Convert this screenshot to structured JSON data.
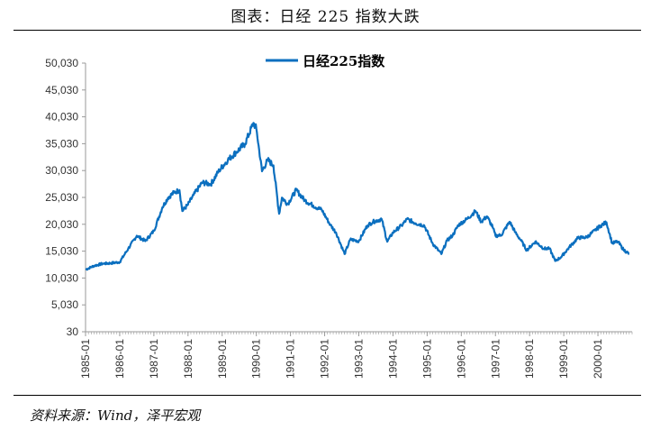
{
  "header": {
    "title": "图表：日经 225 指数大跌"
  },
  "footer": {
    "source": "资料来源：Wind，泽平宏观"
  },
  "colors": {
    "line": "#0b6fbf",
    "axis": "#9a9a9a"
  },
  "chart_data": {
    "type": "line",
    "title": "",
    "xlabel": "",
    "ylabel": "",
    "ylim": [
      30,
      50030
    ],
    "yticks": [
      "50,030",
      "45,030",
      "40,030",
      "35,030",
      "30,030",
      "25,030",
      "20,030",
      "15,030",
      "10,030",
      "5,030",
      "30"
    ],
    "ytick_values": [
      50030,
      45030,
      40030,
      35030,
      30030,
      25030,
      20030,
      15030,
      10030,
      5030,
      30
    ],
    "xticks": [
      "1985-01",
      "1986-01",
      "1987-01",
      "1988-01",
      "1989-01",
      "1990-01",
      "1991-01",
      "1992-01",
      "1993-01",
      "1994-01",
      "1995-01",
      "1996-01",
      "1997-01",
      "1998-01",
      "1999-01",
      "2000-01"
    ],
    "x_range": [
      "1985-01",
      "2000-12"
    ],
    "legend": {
      "position": "top"
    },
    "series": [
      {
        "name": "日经225指数",
        "points": [
          [
            "1985-01",
            11600
          ],
          [
            "1985-04",
            12300
          ],
          [
            "1985-07",
            12700
          ],
          [
            "1985-10",
            12800
          ],
          [
            "1986-01",
            13000
          ],
          [
            "1986-04",
            15500
          ],
          [
            "1986-07",
            17900
          ],
          [
            "1986-10",
            16900
          ],
          [
            "1987-01",
            18800
          ],
          [
            "1987-04",
            23200
          ],
          [
            "1987-06",
            25000
          ],
          [
            "1987-08",
            25900
          ],
          [
            "1987-10",
            26400
          ],
          [
            "1987-11",
            22500
          ],
          [
            "1988-01",
            23700
          ],
          [
            "1988-03",
            25500
          ],
          [
            "1988-06",
            27800
          ],
          [
            "1988-09",
            27500
          ],
          [
            "1988-12",
            30100
          ],
          [
            "1989-03",
            32000
          ],
          [
            "1989-06",
            33500
          ],
          [
            "1989-09",
            35000
          ],
          [
            "1989-12",
            38900
          ],
          [
            "1990-01",
            37800
          ],
          [
            "1990-03",
            29900
          ],
          [
            "1990-05",
            32000
          ],
          [
            "1990-07",
            31000
          ],
          [
            "1990-09",
            22000
          ],
          [
            "1990-10",
            25000
          ],
          [
            "1990-12",
            23800
          ],
          [
            "1991-03",
            26400
          ],
          [
            "1991-06",
            24500
          ],
          [
            "1991-09",
            23500
          ],
          [
            "1991-12",
            22700
          ],
          [
            "1992-03",
            19900
          ],
          [
            "1992-05",
            18500
          ],
          [
            "1992-08",
            14500
          ],
          [
            "1992-10",
            17200
          ],
          [
            "1993-01",
            16900
          ],
          [
            "1993-04",
            19800
          ],
          [
            "1993-06",
            20500
          ],
          [
            "1993-09",
            21000
          ],
          [
            "1993-11",
            16800
          ],
          [
            "1994-01",
            18500
          ],
          [
            "1994-04",
            19800
          ],
          [
            "1994-06",
            21000
          ],
          [
            "1994-09",
            20200
          ],
          [
            "1994-12",
            19800
          ],
          [
            "1995-03",
            16400
          ],
          [
            "1995-06",
            14500
          ],
          [
            "1995-08",
            17000
          ],
          [
            "1995-10",
            18000
          ],
          [
            "1995-12",
            19900
          ],
          [
            "1996-03",
            21000
          ],
          [
            "1996-06",
            22500
          ],
          [
            "1996-08",
            20500
          ],
          [
            "1996-10",
            21500
          ],
          [
            "1996-12",
            19500
          ],
          [
            "1997-01",
            17900
          ],
          [
            "1997-03",
            18000
          ],
          [
            "1997-06",
            20500
          ],
          [
            "1997-08",
            18500
          ],
          [
            "1997-10",
            17000
          ],
          [
            "1997-12",
            15200
          ],
          [
            "1998-03",
            16800
          ],
          [
            "1998-06",
            15500
          ],
          [
            "1998-08",
            15500
          ],
          [
            "1998-10",
            13200
          ],
          [
            "1998-12",
            13900
          ],
          [
            "1999-03",
            15800
          ],
          [
            "1999-06",
            17500
          ],
          [
            "1999-09",
            17600
          ],
          [
            "1999-12",
            18900
          ],
          [
            "2000-02",
            19800
          ],
          [
            "2000-04",
            20400
          ],
          [
            "2000-06",
            16500
          ],
          [
            "2000-08",
            16800
          ],
          [
            "2000-10",
            15300
          ],
          [
            "2000-12",
            14500
          ]
        ]
      }
    ]
  }
}
